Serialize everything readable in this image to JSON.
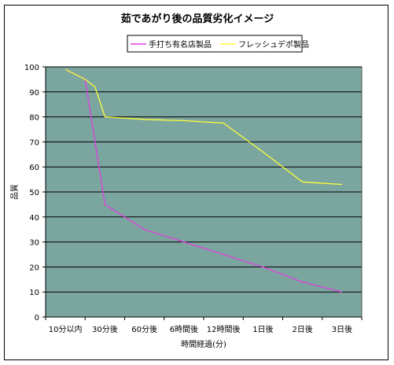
{
  "chart_data": {
    "type": "line",
    "title": "茹であがり後の品質劣化イメージ",
    "ylabel": "品質",
    "xlabel": "時間経過(分)",
    "categories": [
      "10分以内",
      "30分後",
      "60分後",
      "6時間後",
      "12時間後",
      "1日後",
      "2日後",
      "3日後"
    ],
    "ylim": [
      0,
      100
    ],
    "yticks": [
      0,
      10,
      20,
      30,
      40,
      50,
      60,
      70,
      80,
      90,
      100
    ],
    "grid": true,
    "legend_position": "top",
    "plot_background": "#7ba59f",
    "series": [
      {
        "name": "手打ち有名店製品",
        "color": "#e040e0",
        "points": [
          [
            0,
            99
          ],
          [
            0.5,
            95
          ],
          [
            1,
            45
          ],
          [
            2,
            35
          ],
          [
            3,
            30
          ],
          [
            4,
            25
          ],
          [
            5,
            20
          ],
          [
            6,
            14
          ],
          [
            7,
            10
          ]
        ]
      },
      {
        "name": "フレッシュデポ製品",
        "color": "#ffff3c",
        "points": [
          [
            0,
            99
          ],
          [
            0.5,
            95
          ],
          [
            0.75,
            92
          ],
          [
            1,
            80
          ],
          [
            2,
            79
          ],
          [
            3,
            78.5
          ],
          [
            4,
            77.5
          ],
          [
            5,
            66
          ],
          [
            6,
            54
          ],
          [
            7,
            53
          ]
        ]
      }
    ]
  }
}
